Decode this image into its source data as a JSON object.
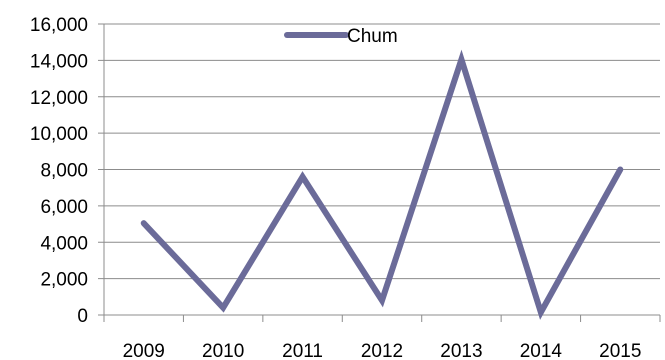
{
  "chart_data": {
    "type": "line",
    "categories": [
      "2009",
      "2010",
      "2011",
      "2012",
      "2013",
      "2014",
      "2015"
    ],
    "series": [
      {
        "name": "Chum",
        "values": [
          5050,
          400,
          7600,
          800,
          14050,
          150,
          8000
        ]
      }
    ],
    "ylim": [
      0,
      16000
    ],
    "yticks": [
      "0",
      "2,000",
      "4,000",
      "6,000",
      "8,000",
      "10,000",
      "12,000",
      "14,000",
      "16,000"
    ],
    "grid": true,
    "legend_position": "top",
    "series_color": "#6b6b99",
    "grid_color": "#8c8c8c"
  }
}
